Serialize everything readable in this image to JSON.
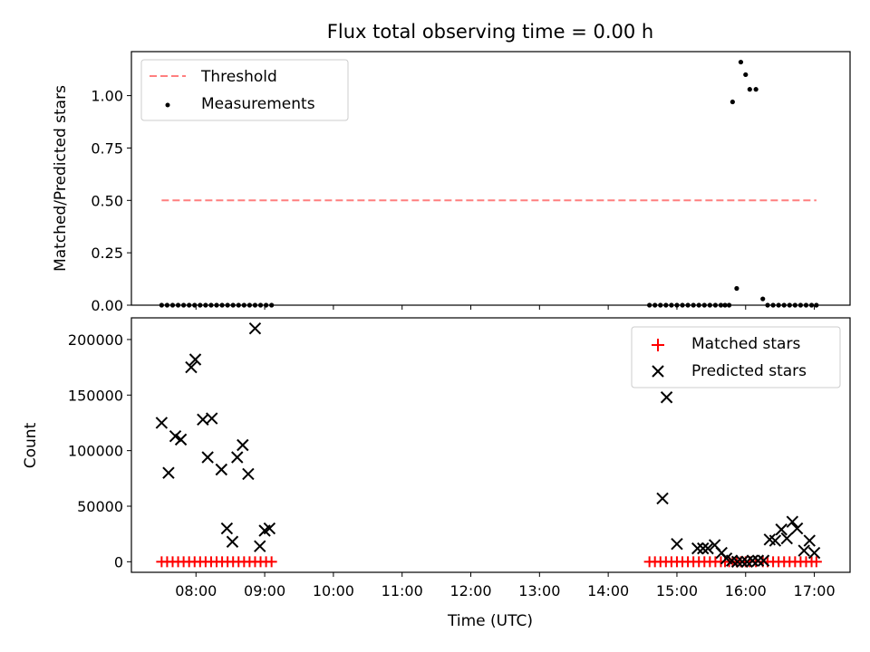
{
  "figure": {
    "title": "Flux total observing time = 0.00 h"
  },
  "chart_data": [
    {
      "type": "scatter",
      "panel": "top",
      "title": "Flux total observing time = 0.00 h",
      "xlabel": "",
      "ylabel": "Matched/Predicted stars",
      "xlim_hours": [
        7.06,
        17.52
      ],
      "ylim": [
        0,
        1.21
      ],
      "yticks": [
        0.0,
        0.25,
        0.5,
        0.75,
        1.0
      ],
      "ytick_labels": [
        "0.00",
        "0.25",
        "0.50",
        "0.75",
        "1.00"
      ],
      "legend_position": "top-left",
      "threshold": {
        "name": "Threshold",
        "color": "#ff7f7f",
        "y": 0.5,
        "x_range_hours": [
          7.5,
          17.03
        ]
      },
      "measurements": {
        "name": "Measurements",
        "color": "#000000",
        "x_hours": [
          7.5,
          7.58,
          7.66,
          7.74,
          7.82,
          7.9,
          7.98,
          8.06,
          8.14,
          8.22,
          8.3,
          8.38,
          8.46,
          8.54,
          8.62,
          8.7,
          8.78,
          8.86,
          8.94,
          9.02,
          9.1,
          14.6,
          14.68,
          14.76,
          14.84,
          14.92,
          15.0,
          15.08,
          15.16,
          15.24,
          15.32,
          15.4,
          15.48,
          15.56,
          15.64,
          15.7,
          15.76,
          15.81,
          15.87,
          15.93,
          16.0,
          16.06,
          16.15,
          16.25,
          16.32,
          16.4,
          16.48,
          16.56,
          16.64,
          16.72,
          16.8,
          16.88,
          16.96,
          17.03
        ],
        "y": [
          0,
          0,
          0,
          0,
          0,
          0,
          0,
          0,
          0,
          0,
          0,
          0,
          0,
          0,
          0,
          0,
          0,
          0,
          0,
          0,
          0,
          0,
          0,
          0,
          0,
          0,
          0,
          0,
          0,
          0,
          0,
          0,
          0,
          0,
          0,
          0,
          0,
          0.97,
          0.08,
          1.16,
          1.1,
          1.03,
          1.03,
          0.03,
          0,
          0,
          0,
          0,
          0,
          0,
          0,
          0,
          0,
          0
        ]
      }
    },
    {
      "type": "scatter",
      "panel": "bottom",
      "xlabel": "Time (UTC)",
      "ylabel": "Count",
      "xlim_hours": [
        7.06,
        17.52
      ],
      "xticks_hours": [
        8,
        9,
        10,
        11,
        12,
        13,
        14,
        15,
        16,
        17
      ],
      "xtick_labels": [
        "08:00",
        "09:00",
        "10:00",
        "11:00",
        "12:00",
        "13:00",
        "14:00",
        "15:00",
        "16:00",
        "17:00"
      ],
      "ylim": [
        -9500,
        219500
      ],
      "yticks": [
        0,
        50000,
        100000,
        150000,
        200000
      ],
      "ytick_labels": [
        "0",
        "50000",
        "100000",
        "150000",
        "200000"
      ],
      "legend_position": "top-right",
      "series": [
        {
          "name": "Matched stars",
          "marker": "plus",
          "color": "#ff0000",
          "x_hours": [
            7.5,
            7.58,
            7.66,
            7.74,
            7.82,
            7.9,
            7.98,
            8.06,
            8.14,
            8.22,
            8.3,
            8.38,
            8.46,
            8.54,
            8.62,
            8.7,
            8.78,
            8.86,
            8.94,
            9.02,
            9.1,
            14.6,
            14.68,
            14.76,
            14.84,
            14.92,
            15.0,
            15.08,
            15.16,
            15.24,
            15.32,
            15.4,
            15.48,
            15.56,
            15.64,
            15.7,
            15.76,
            15.81,
            15.87,
            15.93,
            16.0,
            16.06,
            16.15,
            16.25,
            16.32,
            16.4,
            16.48,
            16.56,
            16.64,
            16.72,
            16.8,
            16.88,
            16.96,
            17.03
          ],
          "values": [
            0,
            0,
            0,
            0,
            0,
            0,
            0,
            0,
            0,
            0,
            0,
            0,
            0,
            0,
            0,
            0,
            0,
            0,
            0,
            0,
            0,
            0,
            0,
            0,
            0,
            0,
            0,
            0,
            0,
            0,
            0,
            0,
            0,
            0,
            0,
            0,
            0,
            0,
            0,
            0,
            0,
            0,
            0,
            0,
            0,
            0,
            0,
            0,
            0,
            0,
            0,
            0,
            0,
            0
          ]
        },
        {
          "name": "Predicted stars",
          "marker": "x",
          "color": "#000000",
          "x_hours": [
            7.5,
            7.6,
            7.7,
            7.78,
            7.93,
            7.99,
            8.1,
            8.17,
            8.23,
            8.37,
            8.45,
            8.53,
            8.6,
            8.68,
            8.76,
            8.86,
            8.93,
            9.0,
            9.07,
            14.79,
            14.85,
            15.0,
            15.3,
            15.38,
            15.45,
            15.55,
            15.65,
            15.72,
            15.8,
            15.88,
            15.95,
            16.02,
            16.1,
            16.18,
            16.26,
            16.35,
            16.43,
            16.52,
            16.6,
            16.68,
            16.75,
            16.85,
            16.93,
            17.0
          ],
          "values": [
            125000,
            80000,
            113000,
            110000,
            175000,
            182000,
            128000,
            94000,
            129000,
            83000,
            30000,
            18000,
            94000,
            105000,
            79000,
            210000,
            14000,
            28000,
            30000,
            57000,
            148000,
            16000,
            12000,
            12000,
            12000,
            15000,
            8000,
            3000,
            1000,
            0,
            0,
            0,
            1000,
            1000,
            1000,
            20000,
            19000,
            29000,
            21000,
            36000,
            30000,
            10000,
            19000,
            8000
          ]
        }
      ]
    }
  ]
}
